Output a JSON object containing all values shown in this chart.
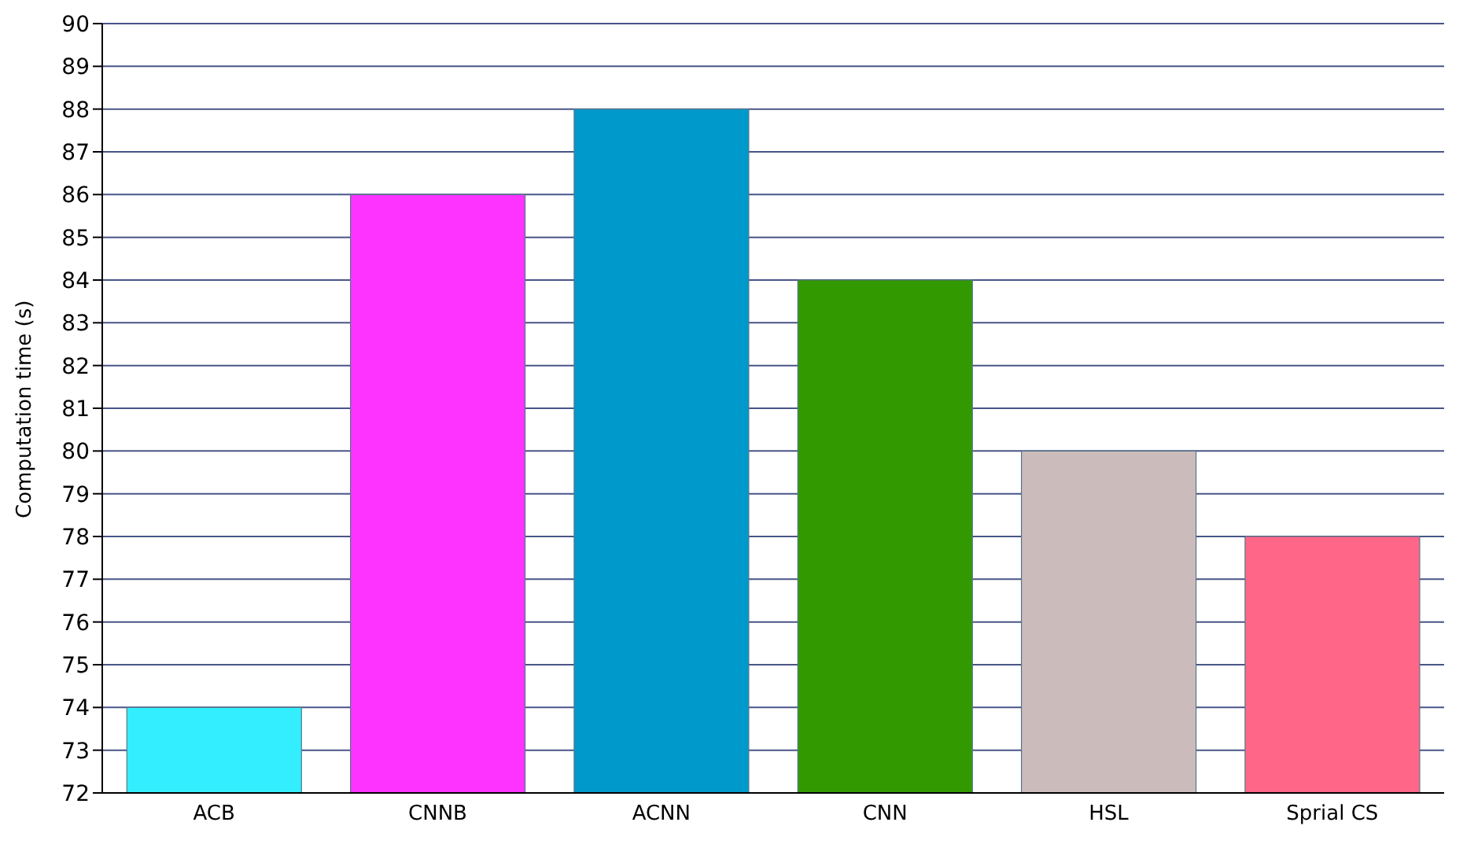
{
  "chart_data": {
    "type": "bar",
    "ylabel": "Computation time (s)",
    "categories": [
      "ACB",
      "CNNB",
      "ACNN",
      "CNN",
      "HSL",
      "Sprial CS"
    ],
    "values": [
      74,
      86,
      88,
      84,
      80,
      78
    ],
    "colors": [
      "#33eeff",
      "#ff33ff",
      "#0099cc",
      "#339900",
      "#ccbbbb",
      "#ff6688"
    ],
    "ylim": [
      72,
      90
    ],
    "yticks": [
      72,
      73,
      74,
      75,
      76,
      77,
      78,
      79,
      80,
      81,
      82,
      83,
      84,
      85,
      86,
      87,
      88,
      89,
      90
    ],
    "grid": "y"
  }
}
